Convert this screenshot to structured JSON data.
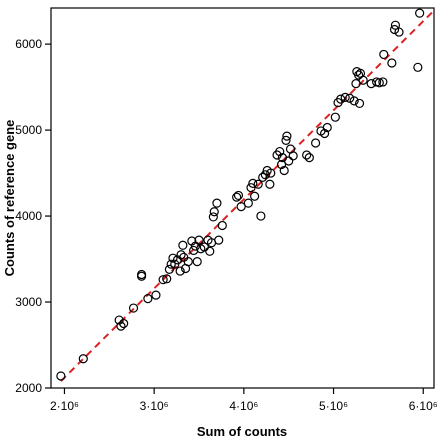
{
  "chart_data": {
    "type": "scatter",
    "xlabel": "Sum of counts",
    "ylabel": "Counts of reference gene",
    "xlim": [
      1850000,
      6120000
    ],
    "ylim": [
      2000,
      6420
    ],
    "x_ticks": [
      {
        "value": 2000000,
        "label": "2·10⁶"
      },
      {
        "value": 3000000,
        "label": "3·10⁶"
      },
      {
        "value": 4000000,
        "label": "4·10⁶"
      },
      {
        "value": 5000000,
        "label": "5·10⁶"
      },
      {
        "value": 6000000,
        "label": "6·10⁶"
      }
    ],
    "y_ticks": [
      {
        "value": 2000,
        "label": "2000"
      },
      {
        "value": 3000,
        "label": "3000"
      },
      {
        "value": 4000,
        "label": "4000"
      },
      {
        "value": 5000,
        "label": "5000"
      },
      {
        "value": 6000,
        "label": "6000"
      }
    ],
    "grid": false,
    "fit_line": {
      "style": "dashed",
      "color": "#dd2222",
      "points": [
        [
          1960000,
          2080
        ],
        [
          6100000,
          6370
        ]
      ]
    },
    "points": [
      [
        1960000,
        2140
      ],
      [
        2210000,
        2340
      ],
      [
        2610000,
        2790
      ],
      [
        2630000,
        2720
      ],
      [
        2660000,
        2750
      ],
      [
        2770000,
        2930
      ],
      [
        2860000,
        3300
      ],
      [
        2860000,
        3320
      ],
      [
        2930000,
        3040
      ],
      [
        3020000,
        3080
      ],
      [
        3100000,
        3260
      ],
      [
        3140000,
        3270
      ],
      [
        3170000,
        3380
      ],
      [
        3190000,
        3440
      ],
      [
        3210000,
        3510
      ],
      [
        3230000,
        3440
      ],
      [
        3260000,
        3490
      ],
      [
        3290000,
        3360
      ],
      [
        3300000,
        3550
      ],
      [
        3320000,
        3660
      ],
      [
        3330000,
        3520
      ],
      [
        3350000,
        3390
      ],
      [
        3380000,
        3470
      ],
      [
        3420000,
        3710
      ],
      [
        3440000,
        3600
      ],
      [
        3460000,
        3650
      ],
      [
        3480000,
        3470
      ],
      [
        3500000,
        3720
      ],
      [
        3520000,
        3620
      ],
      [
        3560000,
        3640
      ],
      [
        3600000,
        3720
      ],
      [
        3620000,
        3590
      ],
      [
        3640000,
        3690
      ],
      [
        3660000,
        3990
      ],
      [
        3670000,
        4050
      ],
      [
        3700000,
        4150
      ],
      [
        3720000,
        3720
      ],
      [
        3760000,
        3890
      ],
      [
        3920000,
        4220
      ],
      [
        3940000,
        4240
      ],
      [
        3970000,
        4110
      ],
      [
        4050000,
        4150
      ],
      [
        4080000,
        4330
      ],
      [
        4100000,
        4380
      ],
      [
        4120000,
        4230
      ],
      [
        4160000,
        4370
      ],
      [
        4190000,
        4000
      ],
      [
        4210000,
        4450
      ],
      [
        4240000,
        4480
      ],
      [
        4260000,
        4530
      ],
      [
        4290000,
        4370
      ],
      [
        4300000,
        4500
      ],
      [
        4370000,
        4710
      ],
      [
        4400000,
        4750
      ],
      [
        4420000,
        4600
      ],
      [
        4430000,
        4680
      ],
      [
        4450000,
        4530
      ],
      [
        4470000,
        4880
      ],
      [
        4480000,
        4930
      ],
      [
        4500000,
        4640
      ],
      [
        4520000,
        4780
      ],
      [
        4550000,
        4700
      ],
      [
        4700000,
        4710
      ],
      [
        4730000,
        4680
      ],
      [
        4800000,
        4850
      ],
      [
        4860000,
        4990
      ],
      [
        4900000,
        4960
      ],
      [
        4930000,
        5030
      ],
      [
        5020000,
        5150
      ],
      [
        5050000,
        5320
      ],
      [
        5080000,
        5360
      ],
      [
        5130000,
        5380
      ],
      [
        5180000,
        5370
      ],
      [
        5230000,
        5340
      ],
      [
        5250000,
        5540
      ],
      [
        5260000,
        5680
      ],
      [
        5280000,
        5640
      ],
      [
        5290000,
        5310
      ],
      [
        5300000,
        5660
      ],
      [
        5330000,
        5580
      ],
      [
        5420000,
        5540
      ],
      [
        5480000,
        5560
      ],
      [
        5510000,
        5550
      ],
      [
        5550000,
        5560
      ],
      [
        5560000,
        5880
      ],
      [
        5650000,
        5780
      ],
      [
        5680000,
        6170
      ],
      [
        5690000,
        6220
      ],
      [
        5730000,
        6140
      ],
      [
        5940000,
        5730
      ],
      [
        5960000,
        6360
      ]
    ]
  }
}
